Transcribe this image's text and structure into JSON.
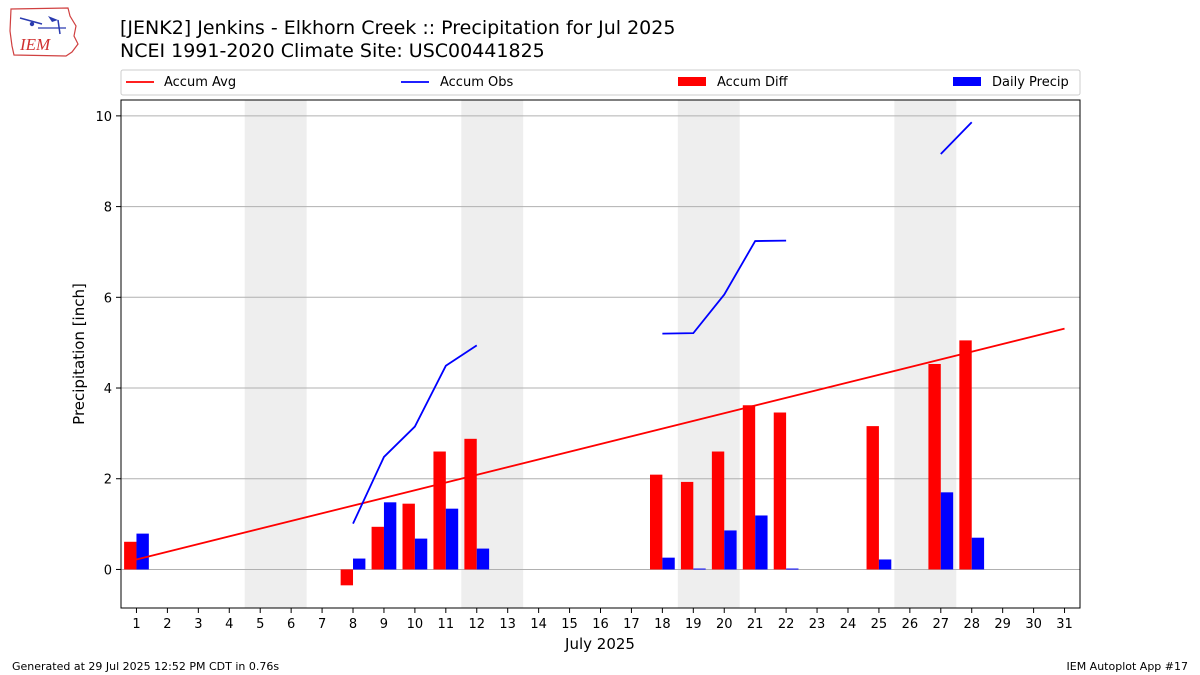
{
  "logo": {
    "text": "IEM"
  },
  "header": {
    "title": "[JENK2] Jenkins - Elkhorn Creek :: Precipitation for Jul 2025",
    "subtitle": "NCEI 1991-2020 Climate Site: USC00441825"
  },
  "footer": {
    "generated": "Generated at 29 Jul 2025 12:52 PM CDT in 0.76s",
    "app": "IEM Autoplot App #17"
  },
  "colors": {
    "avg": "#ff0000",
    "obs": "#0000ff",
    "diff": "#ff0000",
    "daily": "#0000ff",
    "weekend": "#eeeeee",
    "grid": "#b0b0b0"
  },
  "chart_data": {
    "type": "bar",
    "xlabel": "July 2025",
    "ylabel": "Precipitation [inch]",
    "xlim": [
      0.5,
      31.5
    ],
    "ylim": [
      -0.85,
      10.35
    ],
    "yticks": [
      0,
      2,
      4,
      6,
      8,
      10
    ],
    "days": [
      1,
      2,
      3,
      4,
      5,
      6,
      7,
      8,
      9,
      10,
      11,
      12,
      13,
      14,
      15,
      16,
      17,
      18,
      19,
      20,
      21,
      22,
      23,
      24,
      25,
      26,
      27,
      28,
      29,
      30,
      31
    ],
    "grid": "y",
    "legend_position": "top",
    "legend": [
      "Accum Avg",
      "Accum Obs",
      "Accum Diff",
      "Daily Precip"
    ],
    "shaded_days": [
      [
        5,
        6
      ],
      [
        12,
        13
      ],
      [
        19,
        20
      ],
      [
        26,
        27
      ]
    ],
    "series": [
      {
        "name": "Accum Avg",
        "kind": "line",
        "points": [
          [
            1,
            0.22
          ],
          [
            31,
            5.31
          ]
        ]
      },
      {
        "name": "Accum Obs",
        "kind": "line",
        "segments": [
          [
            [
              8,
              1.01
            ],
            [
              9,
              2.48
            ],
            [
              10,
              3.15
            ],
            [
              11,
              4.49
            ],
            [
              12,
              4.94
            ]
          ],
          [
            [
              18,
              5.2
            ],
            [
              19,
              5.21
            ],
            [
              20,
              6.06
            ],
            [
              21,
              7.24
            ],
            [
              22,
              7.25
            ]
          ],
          [
            [
              27,
              9.16
            ],
            [
              28,
              9.86
            ]
          ]
        ]
      },
      {
        "name": "Accum Diff",
        "kind": "bar",
        "offset": "left",
        "values": [
          [
            1,
            0.61
          ],
          [
            8,
            -0.35
          ],
          [
            9,
            0.94
          ],
          [
            10,
            1.45
          ],
          [
            11,
            2.6
          ],
          [
            12,
            2.88
          ],
          [
            18,
            2.09
          ],
          [
            19,
            1.93
          ],
          [
            20,
            2.6
          ],
          [
            21,
            3.62
          ],
          [
            22,
            3.46
          ],
          [
            25,
            3.16
          ],
          [
            27,
            4.53
          ],
          [
            28,
            5.05
          ]
        ]
      },
      {
        "name": "Daily Precip",
        "kind": "bar",
        "offset": "right",
        "values": [
          [
            1,
            0.79
          ],
          [
            8,
            0.24
          ],
          [
            9,
            1.48
          ],
          [
            10,
            0.68
          ],
          [
            11,
            1.34
          ],
          [
            12,
            0.46
          ],
          [
            18,
            0.26
          ],
          [
            19,
            0.02
          ],
          [
            20,
            0.86
          ],
          [
            21,
            1.19
          ],
          [
            22,
            0.02
          ],
          [
            25,
            0.22
          ],
          [
            27,
            1.7
          ],
          [
            28,
            0.7
          ]
        ]
      }
    ]
  }
}
